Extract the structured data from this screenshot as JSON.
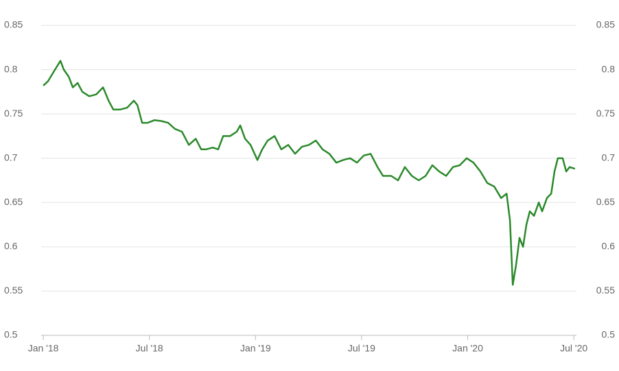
{
  "chart_data": {
    "type": "line",
    "x": [
      0,
      0.27,
      0.66,
      0.97,
      1.16,
      1.44,
      1.67,
      1.94,
      2.21,
      2.6,
      2.99,
      3.38,
      3.69,
      3.96,
      4.35,
      4.74,
      5.12,
      5.32,
      5.59,
      5.9,
      6.29,
      6.68,
      7.06,
      7.45,
      7.84,
      8.23,
      8.62,
      8.93,
      9.2,
      9.58,
      9.89,
      10.17,
      10.56,
      10.94,
      11.14,
      11.41,
      11.72,
      12.11,
      12.38,
      12.69,
      13.08,
      13.46,
      13.85,
      14.24,
      14.63,
      15.02,
      15.41,
      15.79,
      16.18,
      16.57,
      16.96,
      17.35,
      17.74,
      18.12,
      18.51,
      18.9,
      19.21,
      19.67,
      20.06,
      20.45,
      20.84,
      21.23,
      21.62,
      22.0,
      22.39,
      22.78,
      23.17,
      23.55,
      23.94,
      24.33,
      24.72,
      25.11,
      25.5,
      25.89,
      26.2,
      26.39,
      26.55,
      26.74,
      26.93,
      27.13,
      27.32,
      27.51,
      27.75,
      28.02,
      28.21,
      28.48,
      28.72,
      28.91,
      29.1,
      29.37,
      29.57,
      29.76,
      30.07
    ],
    "series": [
      {
        "color": "#2a892a",
        "values": [
          0.782,
          0.787,
          0.8,
          0.81,
          0.8,
          0.792,
          0.78,
          0.785,
          0.775,
          0.77,
          0.772,
          0.78,
          0.765,
          0.755,
          0.755,
          0.757,
          0.765,
          0.76,
          0.74,
          0.74,
          0.743,
          0.742,
          0.74,
          0.733,
          0.73,
          0.715,
          0.722,
          0.71,
          0.71,
          0.712,
          0.71,
          0.725,
          0.725,
          0.73,
          0.737,
          0.722,
          0.715,
          0.698,
          0.71,
          0.72,
          0.725,
          0.71,
          0.715,
          0.705,
          0.713,
          0.715,
          0.72,
          0.71,
          0.705,
          0.695,
          0.698,
          0.7,
          0.695,
          0.703,
          0.705,
          0.69,
          0.68,
          0.68,
          0.675,
          0.69,
          0.68,
          0.675,
          0.68,
          0.692,
          0.685,
          0.68,
          0.69,
          0.692,
          0.7,
          0.695,
          0.685,
          0.672,
          0.668,
          0.655,
          0.66,
          0.63,
          0.557,
          0.58,
          0.61,
          0.6,
          0.625,
          0.64,
          0.635,
          0.65,
          0.64,
          0.655,
          0.66,
          0.685,
          0.7,
          0.7,
          0.685,
          0.69,
          0.688
        ]
      }
    ],
    "xlim": [
      -0.12,
      30.15
    ],
    "xticks": [
      {
        "value": 0,
        "label": "Jan '18"
      },
      {
        "value": 6,
        "label": "Jul '18"
      },
      {
        "value": 12,
        "label": "Jan '19"
      },
      {
        "value": 18,
        "label": "Jul '19"
      },
      {
        "value": 24,
        "label": "Jan '20"
      },
      {
        "value": 30,
        "label": "Jul '20"
      }
    ],
    "ylim": [
      0.5,
      0.85
    ],
    "yticks": [
      0.5,
      0.55,
      0.6,
      0.65,
      0.7,
      0.75,
      0.8,
      0.85
    ],
    "grid": true
  }
}
